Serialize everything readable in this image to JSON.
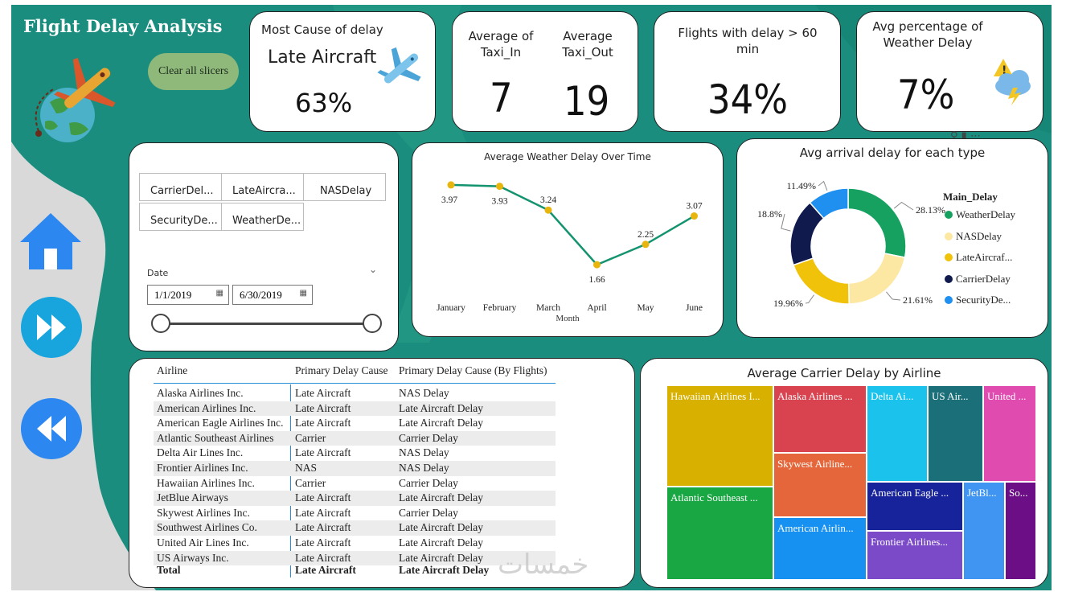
{
  "title": "Flight Delay Analysis",
  "clear_button": "Clear all slicers",
  "kpis": {
    "most_cause_label": "Most Cause of delay",
    "most_cause_value": "Late Aircraft",
    "most_cause_pct": "63%",
    "taxi_in_label": "Average of Taxi_In",
    "taxi_in_value": "7",
    "taxi_out_label": "Average Taxi_Out",
    "taxi_out_value": "19",
    "delay60_label": "Flights with delay > 60 min",
    "delay60_value": "34%",
    "weather_label": "Avg percentage of Weather Delay",
    "weather_value": "7%"
  },
  "slicer": {
    "chips": [
      "CarrierDel...",
      "LateAircra...",
      "NASDelay",
      "SecurityDe...",
      "WeatherDe..."
    ],
    "date_label": "Date",
    "date_from": "1/1/2019",
    "date_to": "6/30/2019"
  },
  "line_chart": {
    "title": "Average Weather Delay Over Time",
    "xlabel": "Month"
  },
  "donut": {
    "title": "Avg arrival delay for each type",
    "legend_title": "Main_Delay"
  },
  "table": {
    "headers": [
      "Airline",
      "Primary Delay Cause",
      "Primary Delay Cause (By Flights)"
    ],
    "rows": [
      [
        "Alaska Airlines Inc.",
        "Late Aircraft",
        "NAS Delay"
      ],
      [
        "American Airlines Inc.",
        "Late Aircraft",
        "Late Aircraft Delay"
      ],
      [
        "American Eagle Airlines Inc.",
        "Late Aircraft",
        "Late Aircraft Delay"
      ],
      [
        "Atlantic Southeast Airlines",
        "Carrier",
        "Carrier Delay"
      ],
      [
        "Delta Air Lines Inc.",
        "Late Aircraft",
        "NAS Delay"
      ],
      [
        "Frontier Airlines Inc.",
        "NAS",
        "NAS Delay"
      ],
      [
        "Hawaiian Airlines Inc.",
        "Carrier",
        "Carrier Delay"
      ],
      [
        "JetBlue Airways",
        "Late Aircraft",
        "Late Aircraft Delay"
      ],
      [
        "Skywest Airlines Inc.",
        "Late Aircraft",
        "Carrier Delay"
      ],
      [
        "Southwest Airlines Co.",
        "Late Aircraft",
        "Late Aircraft Delay"
      ],
      [
        "United Air Lines Inc.",
        "Late Aircraft",
        "Late Aircraft Delay"
      ],
      [
        "US Airways Inc.",
        "Late Aircraft",
        "Late Aircraft Delay"
      ]
    ],
    "total": [
      "Total",
      "Late Aircraft",
      "Late Aircraft Delay"
    ]
  },
  "treemap": {
    "title": "Average Carrier Delay by Airline",
    "tiles": [
      "Hawaiian Airlines I...",
      "Alaska Airlines ...",
      "Delta Ai...",
      "US Air...",
      "United ...",
      "Skywest Airline...",
      "Atlantic Southeast ...",
      "American Eagle ...",
      "JetBl...",
      "So...",
      "American Airlin...",
      "Frontier Airlines..."
    ],
    "colors": [
      "#d8b100",
      "#d8434f",
      "#1bc2ec",
      "#1b6f78",
      "#e04bb0",
      "#e5663a",
      "#19a743",
      "#16239b",
      "#4095f2",
      "#6c0f86",
      "#1691f2",
      "#7b4ac8"
    ]
  },
  "watermark": "خمسات",
  "chart_data": [
    {
      "type": "line",
      "title": "Average Weather Delay Over Time",
      "categories": [
        "January",
        "February",
        "March",
        "April",
        "May",
        "June"
      ],
      "values": [
        3.97,
        3.93,
        3.24,
        1.66,
        2.25,
        3.07
      ],
      "xlabel": "Month",
      "ylabel": "",
      "ylim": [
        1.5,
        4.2
      ],
      "color": "#14936f"
    },
    {
      "type": "pie",
      "title": "Avg arrival delay for each type",
      "legend_title": "Main_Delay",
      "labels": [
        "WeatherDelay",
        "NASDelay",
        "LateAircraf...",
        "CarrierDelay",
        "SecurityDe..."
      ],
      "values": [
        28.13,
        21.61,
        19.96,
        18.8,
        11.49
      ],
      "value_labels": [
        "28.13%",
        "21.61%",
        "19.96%",
        "18.8%",
        "11.49%"
      ],
      "colors": [
        "#17a160",
        "#fde8a3",
        "#f1c20a",
        "#101a4d",
        "#1f8ff0"
      ]
    }
  ]
}
